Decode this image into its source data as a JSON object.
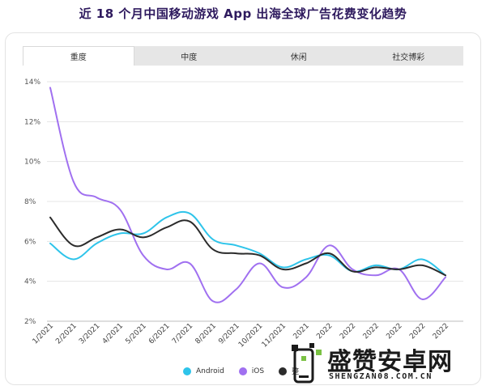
{
  "title": "近 18 个月中国移动游戏 App 出海全球广告花费变化趋势",
  "tabs": [
    {
      "label": "重度",
      "active": true
    },
    {
      "label": "中度",
      "active": false
    },
    {
      "label": "休闲",
      "active": false
    },
    {
      "label": "社交博彩",
      "active": false
    }
  ],
  "legend": [
    {
      "label": "Android",
      "color": "#2ec4ea"
    },
    {
      "label": "iOS",
      "color": "#a070f0"
    },
    {
      "label": "整",
      "color": "#2b2b2b"
    }
  ],
  "watermark": {
    "brand": "盛赞安卓网",
    "url": "SHENGZAN08.COM.CN"
  },
  "chart_data": {
    "type": "line",
    "title": "近 18 个月中国移动游戏 App 出海全球广告花费变化趋势",
    "xlabel": "",
    "ylabel": "",
    "categories": [
      "1/2021",
      "2/2021",
      "3/2021",
      "4/2021",
      "5/2021",
      "6/2021",
      "7/2021",
      "8/2021",
      "9/2021",
      "10/2021",
      "11/2021",
      "12/2021",
      "1/2022",
      "2/2022",
      "3/2022",
      "4/2022",
      "5/2022",
      "6/2022"
    ],
    "x_tick_labels": [
      "1/2021",
      "2/2021",
      "3/2021",
      "4/2021",
      "5/2021",
      "6/2021",
      "7/2021",
      "8/2021",
      "9/2021",
      "10/2021",
      "11/2021",
      "2021",
      "2022",
      "2022",
      "2022",
      "2022",
      "2022",
      "2022"
    ],
    "y_ticks": [
      "2%",
      "4%",
      "6%",
      "8%",
      "10%",
      "12%",
      "14%"
    ],
    "ylim": [
      2,
      14.5
    ],
    "grid": true,
    "legend_position": "bottom",
    "series": [
      {
        "name": "Android",
        "color": "#2ec4ea",
        "values": [
          5.9,
          5.1,
          5.9,
          6.4,
          6.4,
          7.2,
          7.4,
          6.1,
          5.8,
          5.4,
          4.7,
          5.1,
          5.3,
          4.5,
          4.8,
          4.6,
          5.1,
          4.3
        ]
      },
      {
        "name": "iOS",
        "color": "#a070f0",
        "values": [
          13.7,
          9.0,
          8.2,
          7.6,
          5.3,
          4.6,
          4.9,
          3.0,
          3.6,
          4.9,
          3.7,
          4.2,
          5.8,
          4.6,
          4.3,
          4.6,
          3.1,
          4.2
        ]
      },
      {
        "name": "整",
        "color": "#2b2b2b",
        "values": [
          7.2,
          5.8,
          6.2,
          6.6,
          6.2,
          6.7,
          7.0,
          5.6,
          5.4,
          5.3,
          4.6,
          4.9,
          5.4,
          4.5,
          4.7,
          4.6,
          4.8,
          4.3
        ]
      }
    ]
  }
}
